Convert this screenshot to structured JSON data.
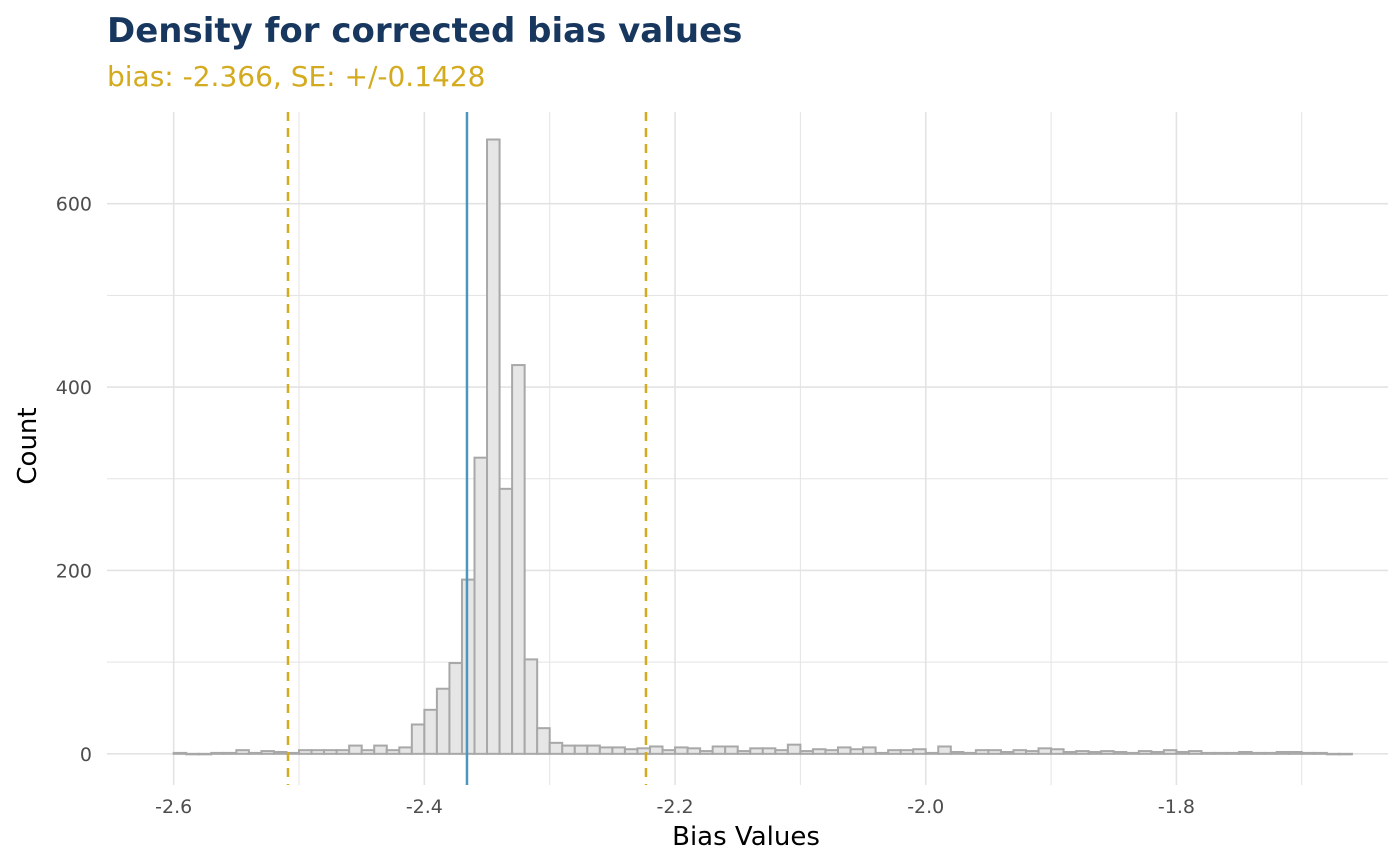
{
  "chart_data": {
    "type": "bar",
    "title": "Density for corrected bias values",
    "subtitle": "bias: -2.366, SE: +/-0.1428",
    "xlabel": "Bias Values",
    "ylabel": "Count",
    "xlim": [
      -2.6532,
      -1.6312
    ],
    "ylim": [
      -34,
      700
    ],
    "x_ticks": [
      -2.6,
      -2.4,
      -2.2,
      -2.0,
      -1.8
    ],
    "x_tick_labels": [
      "-2.6",
      "-2.4",
      "-2.2",
      "-2.0",
      "-1.8"
    ],
    "y_ticks": [
      0,
      200,
      400,
      600
    ],
    "y_tick_labels": [
      "0",
      "200",
      "400",
      "600"
    ],
    "grid": true,
    "bin_width": 0.01,
    "bin_start": -2.6,
    "counts": [
      1,
      0,
      0,
      1,
      1,
      4,
      1,
      3,
      2,
      1,
      4,
      4,
      4,
      4,
      9,
      4,
      9,
      4,
      7,
      32,
      48,
      71,
      99,
      190,
      323,
      670,
      289,
      424,
      103,
      28,
      12,
      9,
      9,
      9,
      7,
      7,
      5,
      6,
      8,
      4,
      7,
      6,
      3,
      8,
      8,
      3,
      6,
      6,
      4,
      10,
      3,
      5,
      4,
      7,
      5,
      7,
      1,
      4,
      4,
      5,
      1,
      8,
      2,
      1,
      4,
      4,
      2,
      4,
      3,
      6,
      5,
      2,
      3,
      2,
      3,
      2,
      1,
      3,
      2,
      4,
      2,
      3,
      1,
      1,
      1,
      2,
      1,
      1,
      2,
      2,
      1,
      1,
      0,
      0
    ],
    "vlines": [
      {
        "value": -2.366,
        "style": "solid",
        "color": "#4a96bf"
      },
      {
        "value": -2.5088,
        "style": "dashed",
        "color": "#d4aa1e"
      },
      {
        "value": -2.2232,
        "style": "dashed",
        "color": "#d4aa1e"
      }
    ],
    "colors": {
      "title": "#17375e",
      "subtitle": "#d4aa1e",
      "bar_fill": "#e6e6e6",
      "bar_stroke": "#a8a8a8",
      "grid": "#e3e3e3",
      "tick_text": "#4d4d4d"
    }
  }
}
